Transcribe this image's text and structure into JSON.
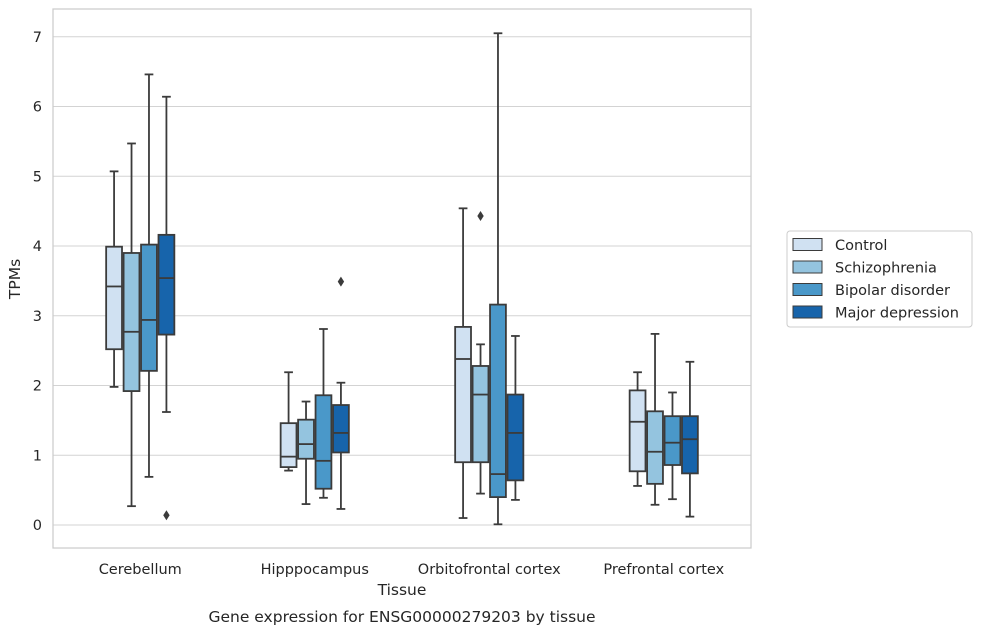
{
  "chart_data": {
    "type": "box",
    "title": "",
    "caption": "Gene expression for ENSG00000279203 by tissue",
    "xlabel": "Tissue",
    "ylabel": "TPMs",
    "ylim": [
      -0.33,
      7.4
    ],
    "yticks": [
      0,
      1,
      2,
      3,
      4,
      5,
      6,
      7
    ],
    "grid": "horizontal",
    "legend_position": "right",
    "categories": [
      "Cerebellum",
      "Hipppocampus",
      "Orbitofrontal cortex",
      "Prefrontal cortex"
    ],
    "series": [
      {
        "name": "Control",
        "color": "#d0e1f2",
        "boxes": [
          {
            "whislo": 1.98,
            "q1": 2.52,
            "med": 3.42,
            "q3": 3.99,
            "whishi": 5.07,
            "fliers": []
          },
          {
            "whislo": 0.78,
            "q1": 0.83,
            "med": 0.98,
            "q3": 1.46,
            "whishi": 2.19,
            "fliers": []
          },
          {
            "whislo": 0.1,
            "q1": 0.9,
            "med": 2.38,
            "q3": 2.84,
            "whishi": 4.54,
            "fliers": []
          },
          {
            "whislo": 0.56,
            "q1": 0.77,
            "med": 1.48,
            "q3": 1.93,
            "whishi": 2.19,
            "fliers": []
          }
        ]
      },
      {
        "name": "Schizophrenia",
        "color": "#94c4df",
        "boxes": [
          {
            "whislo": 0.27,
            "q1": 1.92,
            "med": 2.77,
            "q3": 3.9,
            "whishi": 5.47,
            "fliers": []
          },
          {
            "whislo": 0.3,
            "q1": 0.95,
            "med": 1.16,
            "q3": 1.51,
            "whishi": 1.77,
            "fliers": []
          },
          {
            "whislo": 0.45,
            "q1": 0.9,
            "med": 1.87,
            "q3": 2.28,
            "whishi": 2.59,
            "fliers": [
              4.43
            ]
          },
          {
            "whislo": 0.29,
            "q1": 0.59,
            "med": 1.05,
            "q3": 1.63,
            "whishi": 2.74,
            "fliers": []
          }
        ]
      },
      {
        "name": "Bipolar disorder",
        "color": "#4a98c9",
        "boxes": [
          {
            "whislo": 0.69,
            "q1": 2.21,
            "med": 2.94,
            "q3": 4.02,
            "whishi": 6.46,
            "fliers": []
          },
          {
            "whislo": 0.39,
            "q1": 0.52,
            "med": 0.92,
            "q3": 1.86,
            "whishi": 2.81,
            "fliers": []
          },
          {
            "whislo": 0.01,
            "q1": 0.4,
            "med": 0.73,
            "q3": 3.16,
            "whishi": 7.05,
            "fliers": []
          },
          {
            "whislo": 0.37,
            "q1": 0.86,
            "med": 1.18,
            "q3": 1.56,
            "whishi": 1.9,
            "fliers": []
          }
        ]
      },
      {
        "name": "Major depression",
        "color": "#1764ab",
        "boxes": [
          {
            "whislo": 1.62,
            "q1": 2.73,
            "med": 3.54,
            "q3": 4.16,
            "whishi": 6.14,
            "fliers": [
              0.14
            ]
          },
          {
            "whislo": 0.23,
            "q1": 1.04,
            "med": 1.32,
            "q3": 1.72,
            "whishi": 2.04,
            "fliers": [
              3.49
            ]
          },
          {
            "whislo": 0.36,
            "q1": 0.64,
            "med": 1.32,
            "q3": 1.87,
            "whishi": 2.71,
            "fliers": []
          },
          {
            "whislo": 0.12,
            "q1": 0.74,
            "med": 1.23,
            "q3": 1.56,
            "whishi": 2.34,
            "fliers": []
          }
        ]
      }
    ]
  }
}
